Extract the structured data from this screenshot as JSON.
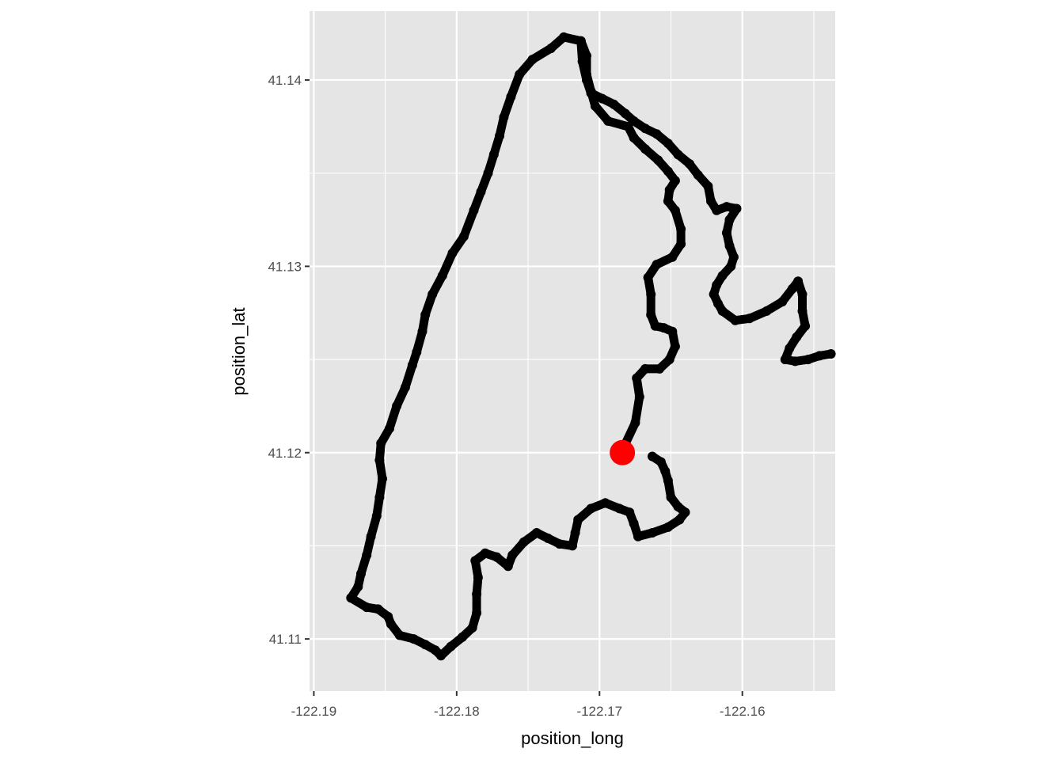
{
  "chart_data": {
    "type": "scatter",
    "title": "",
    "xlabel": "position_long",
    "ylabel": "position_lat",
    "xlim": [
      -122.1903,
      -122.1535
    ],
    "ylim": [
      41.1072,
      41.1437
    ],
    "x_ticks": [
      -122.19,
      -122.18,
      -122.17,
      -122.16
    ],
    "x_tick_labels": [
      "-122.19",
      "-122.18",
      "-122.17",
      "-122.16"
    ],
    "y_ticks": [
      41.11,
      41.12,
      41.13,
      41.14
    ],
    "y_tick_labels": [
      "41.11",
      "41.12",
      "41.13",
      "41.14"
    ],
    "grid": true,
    "legend": "none",
    "colors": {
      "panel": "#e5e5e5",
      "grid": "#ffffff",
      "track": "#000000",
      "marker": "#ff0000"
    },
    "series": [
      {
        "color": "#000000",
        "points": [
          [
            -122.1683,
            41.1203
          ],
          [
            -122.1675,
            41.1216
          ],
          [
            -122.1672,
            41.123
          ],
          [
            -122.1674,
            41.124
          ],
          [
            -122.1668,
            41.1245
          ],
          [
            -122.1658,
            41.1245
          ],
          [
            -122.1651,
            41.125
          ],
          [
            -122.1647,
            41.1257
          ],
          [
            -122.1649,
            41.1265
          ],
          [
            -122.1655,
            41.1267
          ],
          [
            -122.1661,
            41.1268
          ],
          [
            -122.1664,
            41.1274
          ],
          [
            -122.1664,
            41.1285
          ],
          [
            -122.1666,
            41.1294
          ],
          [
            -122.166,
            41.1301
          ],
          [
            -122.1649,
            41.1305
          ],
          [
            -122.1643,
            41.1312
          ],
          [
            -122.1643,
            41.132
          ],
          [
            -122.1647,
            41.133
          ],
          [
            -122.1652,
            41.1335
          ],
          [
            -122.1651,
            41.1341
          ],
          [
            -122.1647,
            41.1346
          ],
          [
            -122.1652,
            41.1351
          ],
          [
            -122.1659,
            41.1357
          ],
          [
            -122.1668,
            41.1363
          ],
          [
            -122.1676,
            41.1369
          ],
          [
            -122.168,
            41.1375
          ],
          [
            -122.1694,
            41.1378
          ],
          [
            -122.1703,
            41.1386
          ],
          [
            -122.1706,
            41.1394
          ],
          [
            -122.1709,
            41.1403
          ],
          [
            -122.1709,
            41.1413
          ],
          [
            -122.1713,
            41.1421
          ],
          [
            -122.1725,
            41.1423
          ],
          [
            -122.1734,
            41.1417
          ],
          [
            -122.1747,
            41.1411
          ],
          [
            -122.1756,
            41.1403
          ],
          [
            -122.1762,
            41.1391
          ],
          [
            -122.1767,
            41.138
          ],
          [
            -122.177,
            41.137
          ],
          [
            -122.1774,
            41.136
          ],
          [
            -122.1778,
            41.135
          ],
          [
            -122.1783,
            41.134
          ],
          [
            -122.1788,
            41.133
          ],
          [
            -122.1795,
            41.1316
          ],
          [
            -122.1803,
            41.1307
          ],
          [
            -122.181,
            41.1295
          ],
          [
            -122.1817,
            41.1285
          ],
          [
            -122.1822,
            41.1274
          ],
          [
            -122.1824,
            41.1265
          ],
          [
            -122.1828,
            41.1254
          ],
          [
            -122.1831,
            41.1247
          ],
          [
            -122.1836,
            41.1235
          ],
          [
            -122.1842,
            41.1225
          ],
          [
            -122.1847,
            41.1213
          ],
          [
            -122.1853,
            41.1205
          ],
          [
            -122.1854,
            41.1196
          ],
          [
            -122.1852,
            41.1186
          ],
          [
            -122.1854,
            41.1176
          ],
          [
            -122.1856,
            41.1166
          ],
          [
            -122.186,
            41.1155
          ],
          [
            -122.1863,
            41.1145
          ],
          [
            -122.1867,
            41.1135
          ],
          [
            -122.1869,
            41.1128
          ],
          [
            -122.1874,
            41.1122
          ],
          [
            -122.1863,
            41.1117
          ],
          [
            -122.1855,
            41.1116
          ],
          [
            -122.1848,
            41.1112
          ],
          [
            -122.1846,
            41.1108
          ],
          [
            -122.184,
            41.1102
          ],
          [
            -122.183,
            41.11
          ],
          [
            -122.1822,
            41.1097
          ],
          [
            -122.1815,
            41.1094
          ],
          [
            -122.1811,
            41.1091
          ],
          [
            -122.1804,
            41.1096
          ],
          [
            -122.1796,
            41.1101
          ],
          [
            -122.1789,
            41.1106
          ],
          [
            -122.1786,
            41.1114
          ],
          [
            -122.1786,
            41.1124
          ],
          [
            -122.1785,
            41.1133
          ],
          [
            -122.1787,
            41.1142
          ],
          [
            -122.178,
            41.1146
          ],
          [
            -122.1772,
            41.1144
          ],
          [
            -122.1764,
            41.1139
          ],
          [
            -122.1761,
            41.1145
          ],
          [
            -122.1753,
            41.1152
          ],
          [
            -122.1744,
            41.1157
          ],
          [
            -122.1736,
            41.1154
          ],
          [
            -122.1728,
            41.1151
          ],
          [
            -122.1719,
            41.115
          ],
          [
            -122.1717,
            41.1157
          ],
          [
            -122.1715,
            41.1164
          ],
          [
            -122.1706,
            41.117
          ],
          [
            -122.1696,
            41.1173
          ],
          [
            -122.1686,
            41.117
          ],
          [
            -122.1679,
            41.1168
          ],
          [
            -122.1676,
            41.1162
          ],
          [
            -122.1673,
            41.1155
          ],
          [
            -122.1663,
            41.1157
          ],
          [
            -122.1652,
            41.116
          ],
          [
            -122.1644,
            41.1164
          ],
          [
            -122.164,
            41.1168
          ],
          [
            -122.1645,
            41.1171
          ],
          [
            -122.165,
            41.1176
          ],
          [
            -122.1652,
            41.1185
          ],
          [
            -122.1654,
            41.119
          ],
          [
            -122.1657,
            41.1195
          ],
          [
            -122.1663,
            41.1198
          ]
        ]
      },
      {
        "color": "#000000",
        "points": [
          [
            -122.1713,
            41.1421
          ],
          [
            -122.1712,
            41.141
          ],
          [
            -122.1709,
            41.14
          ],
          [
            -122.1706,
            41.1393
          ],
          [
            -122.1698,
            41.139
          ],
          [
            -122.169,
            41.1387
          ],
          [
            -122.1682,
            41.1382
          ],
          [
            -122.1676,
            41.1378
          ],
          [
            -122.1668,
            41.1374
          ],
          [
            -122.166,
            41.1371
          ],
          [
            -122.1652,
            41.1366
          ],
          [
            -122.1645,
            41.136
          ],
          [
            -122.1637,
            41.1355
          ],
          [
            -122.1631,
            41.1349
          ],
          [
            -122.1624,
            41.1343
          ],
          [
            -122.1622,
            41.1335
          ],
          [
            -122.1618,
            41.133
          ],
          [
            -122.1611,
            41.1332
          ],
          [
            -122.1604,
            41.1331
          ],
          [
            -122.1609,
            41.1325
          ],
          [
            -122.1611,
            41.1318
          ],
          [
            -122.1609,
            41.1311
          ],
          [
            -122.1606,
            41.1305
          ],
          [
            -122.1608,
            41.13
          ],
          [
            -122.1614,
            41.1295
          ],
          [
            -122.1618,
            41.129
          ],
          [
            -122.162,
            41.1285
          ],
          [
            -122.1617,
            41.128
          ],
          [
            -122.1614,
            41.1276
          ],
          [
            -122.1605,
            41.1271
          ],
          [
            -122.1595,
            41.1272
          ],
          [
            -122.1583,
            41.1276
          ],
          [
            -122.1572,
            41.1281
          ],
          [
            -122.1565,
            41.1288
          ],
          [
            -122.1561,
            41.1292
          ],
          [
            -122.1558,
            41.1285
          ],
          [
            -122.1558,
            41.1276
          ],
          [
            -122.1556,
            41.1268
          ],
          [
            -122.1562,
            41.1262
          ],
          [
            -122.1567,
            41.1256
          ],
          [
            -122.157,
            41.125
          ],
          [
            -122.1563,
            41.1249
          ],
          [
            -122.1554,
            41.125
          ],
          [
            -122.1546,
            41.1252
          ],
          [
            -122.1538,
            41.1253
          ]
        ]
      }
    ],
    "highlight": {
      "x": -122.1684,
      "y": 41.12,
      "color": "#ff0000"
    }
  }
}
